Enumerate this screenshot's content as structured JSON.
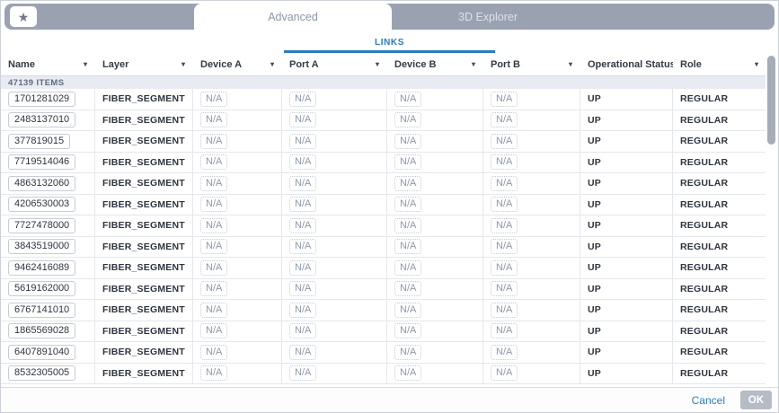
{
  "titlebar": {
    "tabs": [
      {
        "label": "Advanced",
        "active": true
      },
      {
        "label": "3D Explorer",
        "active": false
      }
    ]
  },
  "subtab": {
    "label": "LINKS"
  },
  "icons": {
    "star": "★",
    "dropdown": "▾"
  },
  "table": {
    "columns": [
      "Name",
      "Layer",
      "Device A",
      "Port A",
      "Device B",
      "Port B",
      "Operational Status",
      "Role"
    ],
    "items_count_label": "47139 ITEMS",
    "rows": [
      {
        "name": "1701281029",
        "layer": "FIBER_SEGMENT",
        "device_a": "N/A",
        "port_a": "N/A",
        "device_b": "N/A",
        "port_b": "N/A",
        "status": "UP",
        "role": "REGULAR"
      },
      {
        "name": "2483137010",
        "layer": "FIBER_SEGMENT",
        "device_a": "N/A",
        "port_a": "N/A",
        "device_b": "N/A",
        "port_b": "N/A",
        "status": "UP",
        "role": "REGULAR"
      },
      {
        "name": "377819015",
        "layer": "FIBER_SEGMENT",
        "device_a": "N/A",
        "port_a": "N/A",
        "device_b": "N/A",
        "port_b": "N/A",
        "status": "UP",
        "role": "REGULAR"
      },
      {
        "name": "7719514046",
        "layer": "FIBER_SEGMENT",
        "device_a": "N/A",
        "port_a": "N/A",
        "device_b": "N/A",
        "port_b": "N/A",
        "status": "UP",
        "role": "REGULAR"
      },
      {
        "name": "4863132060",
        "layer": "FIBER_SEGMENT",
        "device_a": "N/A",
        "port_a": "N/A",
        "device_b": "N/A",
        "port_b": "N/A",
        "status": "UP",
        "role": "REGULAR"
      },
      {
        "name": "4206530003",
        "layer": "FIBER_SEGMENT",
        "device_a": "N/A",
        "port_a": "N/A",
        "device_b": "N/A",
        "port_b": "N/A",
        "status": "UP",
        "role": "REGULAR"
      },
      {
        "name": "7727478000",
        "layer": "FIBER_SEGMENT",
        "device_a": "N/A",
        "port_a": "N/A",
        "device_b": "N/A",
        "port_b": "N/A",
        "status": "UP",
        "role": "REGULAR"
      },
      {
        "name": "3843519000",
        "layer": "FIBER_SEGMENT",
        "device_a": "N/A",
        "port_a": "N/A",
        "device_b": "N/A",
        "port_b": "N/A",
        "status": "UP",
        "role": "REGULAR"
      },
      {
        "name": "9462416089",
        "layer": "FIBER_SEGMENT",
        "device_a": "N/A",
        "port_a": "N/A",
        "device_b": "N/A",
        "port_b": "N/A",
        "status": "UP",
        "role": "REGULAR"
      },
      {
        "name": "5619162000",
        "layer": "FIBER_SEGMENT",
        "device_a": "N/A",
        "port_a": "N/A",
        "device_b": "N/A",
        "port_b": "N/A",
        "status": "UP",
        "role": "REGULAR"
      },
      {
        "name": "6767141010",
        "layer": "FIBER_SEGMENT",
        "device_a": "N/A",
        "port_a": "N/A",
        "device_b": "N/A",
        "port_b": "N/A",
        "status": "UP",
        "role": "REGULAR"
      },
      {
        "name": "1865569028",
        "layer": "FIBER_SEGMENT",
        "device_a": "N/A",
        "port_a": "N/A",
        "device_b": "N/A",
        "port_b": "N/A",
        "status": "UP",
        "role": "REGULAR"
      },
      {
        "name": "6407891040",
        "layer": "FIBER_SEGMENT",
        "device_a": "N/A",
        "port_a": "N/A",
        "device_b": "N/A",
        "port_b": "N/A",
        "status": "UP",
        "role": "REGULAR"
      },
      {
        "name": "8532305005",
        "layer": "FIBER_SEGMENT",
        "device_a": "N/A",
        "port_a": "N/A",
        "device_b": "N/A",
        "port_b": "N/A",
        "status": "UP",
        "role": "REGULAR"
      }
    ]
  },
  "footer": {
    "cancel_label": "Cancel",
    "ok_label": "OK"
  },
  "colors": {
    "accent_blue": "#2b7cb8",
    "strip_gray": "#9aa2b2",
    "disabled_gray": "#b6bcc6"
  }
}
